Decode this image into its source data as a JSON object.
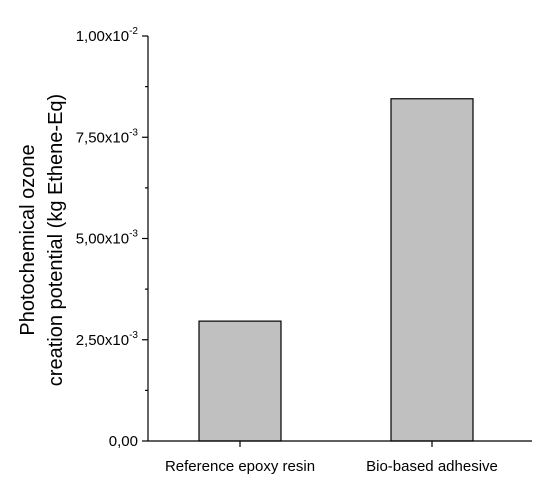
{
  "chart_data": {
    "type": "bar",
    "categories": [
      "Reference epoxy resin",
      "Bio-based adhesive"
    ],
    "values": [
      0.00296,
      0.00845
    ],
    "title": "",
    "xlabel": "",
    "ylabel": "Photochemical ozone creation potential (kg Ethene-Eq)",
    "ylabel_lines": [
      "Photochemical ozone",
      "creation potential (kg Ethene-Eq)"
    ],
    "ylim": [
      0,
      0.01
    ],
    "y_ticks": [
      {
        "value": 0,
        "mantissa": "0,00",
        "exponent": ""
      },
      {
        "value": 0.0025,
        "mantissa": "2,50x10",
        "exponent": "-3"
      },
      {
        "value": 0.005,
        "mantissa": "5,00x10",
        "exponent": "-3"
      },
      {
        "value": 0.0075,
        "mantissa": "7,50x10",
        "exponent": "-3"
      },
      {
        "value": 0.01,
        "mantissa": "1,00x10",
        "exponent": "-2"
      }
    ],
    "grid": false,
    "colors": {
      "bar_fill": "#c0c0c0",
      "bar_stroke": "#000000"
    }
  }
}
